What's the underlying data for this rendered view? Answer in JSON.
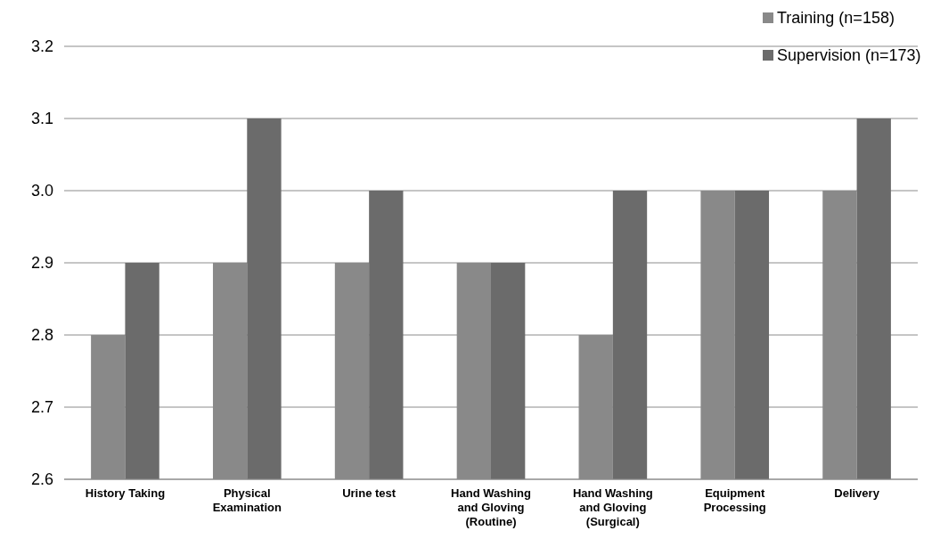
{
  "chart_data": {
    "type": "bar",
    "categories": [
      "History Taking",
      "Physical Examination",
      "Urine test",
      "Hand Washing and Gloving (Routine)",
      "Hand Washing and Gloving (Surgical)",
      "Equipment Processing",
      "Delivery"
    ],
    "series": [
      {
        "name": "Training (n=158)",
        "color": "#898989",
        "values": [
          2.8,
          2.9,
          2.9,
          2.9,
          2.8,
          3.0,
          3.0
        ]
      },
      {
        "name": "Supervision (n=173)",
        "color": "#6b6b6b",
        "values": [
          2.9,
          3.1,
          3.0,
          2.9,
          3.0,
          3.0,
          3.1
        ]
      }
    ],
    "ylim": [
      2.6,
      3.2
    ],
    "yticks": [
      {
        "value": 2.6,
        "label": "2.6"
      },
      {
        "value": 2.7,
        "label": "2.7"
      },
      {
        "value": 2.8,
        "label": "2.8"
      },
      {
        "value": 2.9,
        "label": "2.9"
      },
      {
        "value": 3.0,
        "label": "3.0"
      },
      {
        "value": 3.1,
        "label": "3.1"
      },
      {
        "value": 3.2,
        "label": "3.2"
      }
    ],
    "grid": "y",
    "legend": "top right"
  }
}
